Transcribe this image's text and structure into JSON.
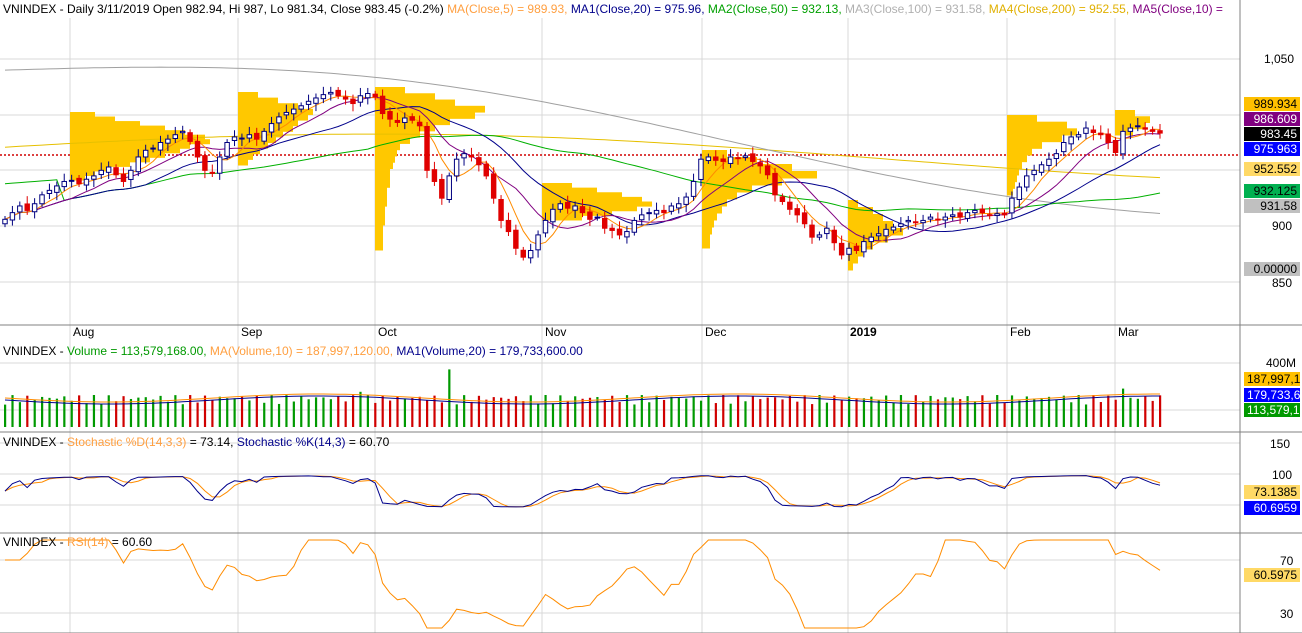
{
  "price_header": {
    "symbol": "VNINDEX",
    "ohlc": "Daily 3/11/2019 Open 982.94, Hi 987, Lo 981.34, Close 983.45 (-0.2%)",
    "ma": "MA(Close,5) = 989.93,",
    "ma1": "MA1(Close,20) = 975.96,",
    "ma2": "MA2(Close,50) = 932.13,",
    "ma3": "MA3(Close,100) = 931.58,",
    "ma4": "MA4(Close,200) = 952.55,",
    "ma5": "MA5(Close,10) ="
  },
  "volume_header": {
    "symbol": "VNINDEX",
    "vol": "Volume = 113,579,168.00,",
    "ma": "MA(Volume,10) = 187,997,120.00,",
    "ma1": "MA1(Volume,20) = 179,733,600.00"
  },
  "stoch_header": {
    "symbol": "VNINDEX",
    "d": "Stochastic %D(14,3,3)",
    "d_val": "= 73.14,",
    "k": "Stochastic %K(14,3)",
    "k_val": "= 60.70"
  },
  "rsi_header": {
    "symbol": "VNINDEX",
    "rsi": "RSI(14)",
    "rsi_val": "= 60.60"
  },
  "price_axis": [
    "1,050",
    "900",
    "850"
  ],
  "volume_axis": [
    "400M"
  ],
  "stoch_axis": [
    "150",
    "100"
  ],
  "rsi_axis": [
    "70",
    "30"
  ],
  "x_axis_labels": [
    "Aug",
    "Sep",
    "Oct",
    "Nov",
    "Dec",
    "2019",
    "Feb",
    "Mar"
  ],
  "price_tags": [
    {
      "text": "989.934",
      "bg": "#ffc000",
      "fg": "#000000"
    },
    {
      "text": "986.609",
      "bg": "#800080",
      "fg": "#ffffff"
    },
    {
      "text": "983.45",
      "bg": "#000000",
      "fg": "#ffffff"
    },
    {
      "text": "975.963",
      "bg": "#0000ff",
      "fg": "#ffffff"
    },
    {
      "text": "952.552",
      "bg": "#ffd966",
      "fg": "#000000"
    },
    {
      "text": "932.125",
      "bg": "#00b050",
      "fg": "#000000"
    },
    {
      "text": "931.58",
      "bg": "#c0c0c0",
      "fg": "#000000"
    },
    {
      "text": "0.00000",
      "bg": "#c0c0c0",
      "fg": "#000000"
    }
  ],
  "volume_tags": [
    {
      "text": "187,997,1",
      "bg": "#ffc000",
      "fg": "#000000"
    },
    {
      "text": "179,733,6",
      "bg": "#0000ff",
      "fg": "#ffffff"
    },
    {
      "text": "113,579,1",
      "bg": "#009900",
      "fg": "#ffffff"
    }
  ],
  "stoch_tags": [
    {
      "text": "73.1385",
      "bg": "#ffd966",
      "fg": "#000000"
    },
    {
      "text": "60.6959",
      "bg": "#0000ff",
      "fg": "#ffffff"
    }
  ],
  "rsi_tags": [
    {
      "text": "60.5975",
      "bg": "#ffd966",
      "fg": "#000000"
    }
  ],
  "colors": {
    "up": "#ffffff",
    "down": "#e00000",
    "candle_border": "#000080",
    "ma5": "#ff8c00",
    "ma20": "#00008b",
    "ma50": "#00b000",
    "ma100": "#a0a0a0",
    "ma200": "#e6c000",
    "ma10": "#800080",
    "vp": "#ffc800",
    "hline": "#d00000",
    "vol_up": "#009900",
    "vol_down": "#d00000"
  },
  "chart_data": {
    "type": "line",
    "title": "VNINDEX Daily",
    "close_series": [
      {
        "date": "2018-07-23",
        "close": 906
      },
      {
        "date": "2018-07-24",
        "close": 912
      },
      {
        "date": "2018-07-25",
        "close": 918
      },
      {
        "date": "2018-07-26",
        "close": 914
      },
      {
        "date": "2018-07-27",
        "close": 920
      },
      {
        "date": "2018-07-30",
        "close": 928
      },
      {
        "date": "2018-07-31",
        "close": 932
      },
      {
        "date": "2018-08-01",
        "close": 936
      },
      {
        "date": "2018-08-02",
        "close": 940
      },
      {
        "date": "2018-08-03",
        "close": 941
      },
      {
        "date": "2018-08-06",
        "close": 938
      },
      {
        "date": "2018-08-07",
        "close": 942
      },
      {
        "date": "2018-08-08",
        "close": 945
      },
      {
        "date": "2018-08-09",
        "close": 950
      },
      {
        "date": "2018-08-10",
        "close": 953
      },
      {
        "date": "2018-08-13",
        "close": 946
      },
      {
        "date": "2018-08-14",
        "close": 940
      },
      {
        "date": "2018-08-15",
        "close": 950
      },
      {
        "date": "2018-08-16",
        "close": 962
      },
      {
        "date": "2018-08-17",
        "close": 968
      },
      {
        "date": "2018-08-20",
        "close": 970
      },
      {
        "date": "2018-08-21",
        "close": 975
      },
      {
        "date": "2018-08-22",
        "close": 978
      },
      {
        "date": "2018-08-23",
        "close": 982
      },
      {
        "date": "2018-08-24",
        "close": 985
      },
      {
        "date": "2018-08-27",
        "close": 976
      },
      {
        "date": "2018-08-28",
        "close": 962
      },
      {
        "date": "2018-08-29",
        "close": 950
      },
      {
        "date": "2018-08-30",
        "close": 948
      },
      {
        "date": "2018-08-31",
        "close": 962
      },
      {
        "date": "2018-09-04",
        "close": 975
      },
      {
        "date": "2018-09-05",
        "close": 980
      },
      {
        "date": "2018-09-06",
        "close": 979
      },
      {
        "date": "2018-09-07",
        "close": 982
      },
      {
        "date": "2018-09-10",
        "close": 978
      },
      {
        "date": "2018-09-11",
        "close": 985
      },
      {
        "date": "2018-09-12",
        "close": 992
      },
      {
        "date": "2018-09-13",
        "close": 998
      },
      {
        "date": "2018-09-14",
        "close": 1002
      },
      {
        "date": "2018-09-17",
        "close": 1005
      },
      {
        "date": "2018-09-18",
        "close": 1008
      },
      {
        "date": "2018-09-19",
        "close": 1012
      },
      {
        "date": "2018-09-20",
        "close": 1015
      },
      {
        "date": "2018-09-21",
        "close": 1018
      },
      {
        "date": "2018-09-24",
        "close": 1020
      },
      {
        "date": "2018-09-25",
        "close": 1017
      },
      {
        "date": "2018-09-26",
        "close": 1014
      },
      {
        "date": "2018-09-27",
        "close": 1010
      },
      {
        "date": "2018-09-28",
        "close": 1017
      },
      {
        "date": "2018-10-01",
        "close": 1019
      },
      {
        "date": "2018-10-02",
        "close": 1016
      },
      {
        "date": "2018-10-03",
        "close": 1001
      },
      {
        "date": "2018-10-04",
        "close": 996
      },
      {
        "date": "2018-10-05",
        "close": 993
      },
      {
        "date": "2018-10-08",
        "close": 997
      },
      {
        "date": "2018-10-09",
        "close": 995
      },
      {
        "date": "2018-10-10",
        "close": 990
      },
      {
        "date": "2018-10-11",
        "close": 950
      },
      {
        "date": "2018-10-12",
        "close": 940
      },
      {
        "date": "2018-10-15",
        "close": 925
      },
      {
        "date": "2018-10-16",
        "close": 945
      },
      {
        "date": "2018-10-17",
        "close": 960
      },
      {
        "date": "2018-10-18",
        "close": 965
      },
      {
        "date": "2018-10-19",
        "close": 962
      },
      {
        "date": "2018-10-22",
        "close": 955
      },
      {
        "date": "2018-10-23",
        "close": 945
      },
      {
        "date": "2018-10-24",
        "close": 925
      },
      {
        "date": "2018-10-25",
        "close": 905
      },
      {
        "date": "2018-10-26",
        "close": 895
      },
      {
        "date": "2018-10-29",
        "close": 880
      },
      {
        "date": "2018-10-30",
        "close": 872
      },
      {
        "date": "2018-10-31",
        "close": 878
      },
      {
        "date": "2018-11-01",
        "close": 892
      },
      {
        "date": "2018-11-02",
        "close": 905
      },
      {
        "date": "2018-11-05",
        "close": 915
      },
      {
        "date": "2018-11-06",
        "close": 920
      },
      {
        "date": "2018-11-07",
        "close": 916
      },
      {
        "date": "2018-11-08",
        "close": 918
      },
      {
        "date": "2018-11-09",
        "close": 912
      },
      {
        "date": "2018-11-12",
        "close": 906
      },
      {
        "date": "2018-11-13",
        "close": 908
      },
      {
        "date": "2018-11-14",
        "close": 898
      },
      {
        "date": "2018-11-15",
        "close": 896
      },
      {
        "date": "2018-11-16",
        "close": 892
      },
      {
        "date": "2018-11-19",
        "close": 895
      },
      {
        "date": "2018-11-20",
        "close": 905
      },
      {
        "date": "2018-11-21",
        "close": 910
      },
      {
        "date": "2018-11-22",
        "close": 912
      },
      {
        "date": "2018-11-23",
        "close": 914
      },
      {
        "date": "2018-11-26",
        "close": 912
      },
      {
        "date": "2018-11-27",
        "close": 918
      },
      {
        "date": "2018-11-28",
        "close": 920
      },
      {
        "date": "2018-11-29",
        "close": 926
      },
      {
        "date": "2018-11-30",
        "close": 940
      },
      {
        "date": "2018-12-03",
        "close": 960
      },
      {
        "date": "2018-12-04",
        "close": 962
      },
      {
        "date": "2018-12-05",
        "close": 959
      },
      {
        "date": "2018-12-06",
        "close": 958
      },
      {
        "date": "2018-12-07",
        "close": 962
      },
      {
        "date": "2018-12-10",
        "close": 961
      },
      {
        "date": "2018-12-11",
        "close": 963
      },
      {
        "date": "2018-12-12",
        "close": 958
      },
      {
        "date": "2018-12-13",
        "close": 954
      },
      {
        "date": "2018-12-14",
        "close": 946
      },
      {
        "date": "2018-12-17",
        "close": 928
      },
      {
        "date": "2018-12-18",
        "close": 922
      },
      {
        "date": "2018-12-19",
        "close": 915
      },
      {
        "date": "2018-12-20",
        "close": 910
      },
      {
        "date": "2018-12-21",
        "close": 902
      },
      {
        "date": "2018-12-24",
        "close": 890
      },
      {
        "date": "2018-12-25",
        "close": 892
      },
      {
        "date": "2018-12-26",
        "close": 898
      },
      {
        "date": "2018-12-27",
        "close": 885
      },
      {
        "date": "2018-12-28",
        "close": 874
      },
      {
        "date": "2019-01-02",
        "close": 880
      },
      {
        "date": "2019-01-03",
        "close": 878
      },
      {
        "date": "2019-01-04",
        "close": 886
      },
      {
        "date": "2019-01-07",
        "close": 890
      },
      {
        "date": "2019-01-08",
        "close": 893
      },
      {
        "date": "2019-01-09",
        "close": 897
      },
      {
        "date": "2019-01-10",
        "close": 899
      },
      {
        "date": "2019-01-11",
        "close": 902
      },
      {
        "date": "2019-01-14",
        "close": 905
      },
      {
        "date": "2019-01-15",
        "close": 903
      },
      {
        "date": "2019-01-16",
        "close": 905
      },
      {
        "date": "2019-01-17",
        "close": 908
      },
      {
        "date": "2019-01-18",
        "close": 906
      },
      {
        "date": "2019-01-21",
        "close": 908
      },
      {
        "date": "2019-01-22",
        "close": 910
      },
      {
        "date": "2019-01-23",
        "close": 908
      },
      {
        "date": "2019-01-24",
        "close": 912
      },
      {
        "date": "2019-01-25",
        "close": 914
      },
      {
        "date": "2019-01-28",
        "close": 912
      },
      {
        "date": "2019-01-29",
        "close": 910
      },
      {
        "date": "2019-01-30",
        "close": 911
      },
      {
        "date": "2019-01-31",
        "close": 910
      },
      {
        "date": "2019-02-11",
        "close": 925
      },
      {
        "date": "2019-02-12",
        "close": 935
      },
      {
        "date": "2019-02-13",
        "close": 945
      },
      {
        "date": "2019-02-14",
        "close": 950
      },
      {
        "date": "2019-02-15",
        "close": 955
      },
      {
        "date": "2019-02-18",
        "close": 960
      },
      {
        "date": "2019-02-19",
        "close": 965
      },
      {
        "date": "2019-02-20",
        "close": 975
      },
      {
        "date": "2019-02-21",
        "close": 980
      },
      {
        "date": "2019-02-22",
        "close": 982
      },
      {
        "date": "2019-02-25",
        "close": 988
      },
      {
        "date": "2019-02-26",
        "close": 984
      },
      {
        "date": "2019-02-27",
        "close": 982
      },
      {
        "date": "2019-02-28",
        "close": 975
      },
      {
        "date": "2019-03-01",
        "close": 966
      },
      {
        "date": "2019-03-04",
        "close": 985
      },
      {
        "date": "2019-03-05",
        "close": 988
      },
      {
        "date": "2019-03-06",
        "close": 990
      },
      {
        "date": "2019-03-07",
        "close": 987
      },
      {
        "date": "2019-03-08",
        "close": 985
      },
      {
        "date": "2019-03-11",
        "close": 983.45
      }
    ],
    "last_values": {
      "MA5": 989.93,
      "MA20": 975.96,
      "MA50": 932.13,
      "MA100": 931.58,
      "MA200": 952.55,
      "Volume": 113579168,
      "MA_Volume_10": 187997120,
      "MA_Volume_20": 179733600,
      "Stochastic_D": 73.14,
      "Stochastic_K": 60.7,
      "RSI14": 60.6
    },
    "ylim_price": [
      835,
      1075
    ],
    "ylim_stoch": [
      -10,
      170
    ],
    "ylim_rsi": [
      20,
      85
    ],
    "grid": true
  }
}
